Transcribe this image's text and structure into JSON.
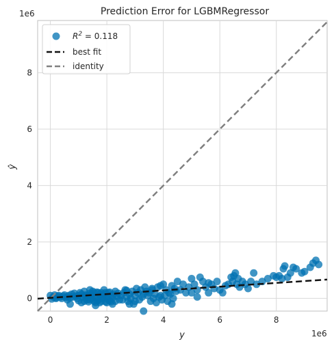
{
  "chart_data": {
    "type": "scatter",
    "title": "Prediction Error for LGBMRegressor",
    "xlabel": "y",
    "ylabel": "ŷ",
    "x_offset_label": "1e6",
    "y_offset_label": "1e6",
    "xlim": [
      -0.45,
      9.8
    ],
    "ylim": [
      -0.45,
      9.85
    ],
    "xticks": [
      0,
      2,
      4,
      6,
      8
    ],
    "yticks": [
      0,
      2,
      4,
      6,
      8
    ],
    "grid": true,
    "legend_placement": "top-left",
    "legend": {
      "r2_prefix": "R",
      "r2_sup": "2",
      "r2_value": " = 0.118",
      "best_fit": "best fit",
      "identity": "identity"
    },
    "colors": {
      "points": "#0072b2",
      "best_fit": "#111111",
      "identity": "#808080",
      "grid": "#d9d9d9"
    },
    "series": [
      {
        "name": "R² = 0.118",
        "points": [
          [
            0.0,
            0.1
          ],
          [
            0.1,
            0.05
          ],
          [
            0.15,
            0.12
          ],
          [
            0.2,
            0.02
          ],
          [
            0.25,
            0.08
          ],
          [
            0.3,
            0.1
          ],
          [
            0.05,
            -0.02
          ],
          [
            0.35,
            0.05
          ],
          [
            0.4,
            0.0
          ],
          [
            0.45,
            0.08
          ],
          [
            0.5,
            0.12
          ],
          [
            0.55,
            0.03
          ],
          [
            0.6,
            0.06
          ],
          [
            0.65,
            0.1
          ],
          [
            0.7,
            0.02
          ],
          [
            0.75,
            0.15
          ],
          [
            0.8,
            0.05
          ],
          [
            0.85,
            0.18
          ],
          [
            0.9,
            0.08
          ],
          [
            0.95,
            0.0
          ],
          [
            1.0,
            0.1
          ],
          [
            1.05,
            0.2
          ],
          [
            1.1,
            0.15
          ],
          [
            1.15,
            0.05
          ],
          [
            1.2,
            0.25
          ],
          [
            1.25,
            0.12
          ],
          [
            1.3,
            -0.05
          ],
          [
            1.35,
            0.08
          ],
          [
            1.4,
            0.18
          ],
          [
            1.45,
            0.0
          ],
          [
            1.5,
            0.1
          ],
          [
            1.55,
            -0.1
          ],
          [
            1.6,
            0.05
          ],
          [
            1.65,
            0.22
          ],
          [
            1.7,
            -0.05
          ],
          [
            1.75,
            0.12
          ],
          [
            1.8,
            0.2
          ],
          [
            1.85,
            0.0
          ],
          [
            1.9,
            0.15
          ],
          [
            1.95,
            -0.12
          ],
          [
            2.0,
            0.05
          ],
          [
            2.05,
            0.2
          ],
          [
            2.1,
            -0.08
          ],
          [
            2.15,
            0.1
          ],
          [
            2.2,
            0.02
          ],
          [
            2.25,
            0.15
          ],
          [
            2.3,
            -0.1
          ],
          [
            2.35,
            0.08
          ],
          [
            2.4,
            0.18
          ],
          [
            2.45,
            -0.05
          ],
          [
            1.2,
            -0.1
          ],
          [
            1.3,
            0.1
          ],
          [
            1.4,
            -0.05
          ],
          [
            1.5,
            0.25
          ],
          [
            1.6,
            -0.15
          ],
          [
            1.7,
            0.2
          ],
          [
            1.8,
            -0.1
          ],
          [
            1.9,
            0.05
          ],
          [
            2.0,
            -0.15
          ],
          [
            2.1,
            0.22
          ],
          [
            1.25,
            0.05
          ],
          [
            1.35,
            -0.12
          ],
          [
            1.45,
            0.15
          ],
          [
            1.55,
            0.2
          ],
          [
            1.65,
            -0.08
          ],
          [
            1.75,
            -0.15
          ],
          [
            1.85,
            0.12
          ],
          [
            1.95,
            0.2
          ],
          [
            2.05,
            -0.05
          ],
          [
            2.15,
            -0.12
          ],
          [
            2.5,
            0.1
          ],
          [
            2.6,
            0.2
          ],
          [
            2.7,
            0.05
          ],
          [
            2.8,
            0.15
          ],
          [
            2.9,
            0.25
          ],
          [
            3.0,
            0.1
          ],
          [
            3.1,
            0.2
          ],
          [
            3.2,
            0.3
          ],
          [
            3.3,
            0.15
          ],
          [
            3.4,
            0.25
          ],
          [
            2.55,
            -0.05
          ],
          [
            2.65,
            0.3
          ],
          [
            2.75,
            -0.1
          ],
          [
            2.85,
            0.0
          ],
          [
            2.95,
            -0.2
          ],
          [
            3.05,
            0.35
          ],
          [
            3.15,
            -0.05
          ],
          [
            3.25,
            0.05
          ],
          [
            3.35,
            0.4
          ],
          [
            3.45,
            0.1
          ],
          [
            3.5,
            0.2
          ],
          [
            3.6,
            0.3
          ],
          [
            3.7,
            0.15
          ],
          [
            3.8,
            0.4
          ],
          [
            3.9,
            0.1
          ],
          [
            4.0,
            0.5
          ],
          [
            4.1,
            0.3
          ],
          [
            4.2,
            0.2
          ],
          [
            4.3,
            0.45
          ],
          [
            4.4,
            0.35
          ],
          [
            3.55,
            -0.1
          ],
          [
            3.65,
            0.0
          ],
          [
            3.75,
            -0.15
          ],
          [
            3.85,
            0.05
          ],
          [
            3.95,
            -0.05
          ],
          [
            4.05,
            0.1
          ],
          [
            4.15,
            -0.1
          ],
          [
            4.25,
            0.15
          ],
          [
            4.35,
            0.0
          ],
          [
            4.45,
            0.25
          ],
          [
            4.5,
            0.6
          ],
          [
            4.6,
            0.3
          ],
          [
            4.7,
            0.5
          ],
          [
            4.8,
            0.2
          ],
          [
            4.9,
            0.4
          ],
          [
            5.0,
            0.7
          ],
          [
            5.1,
            0.5
          ],
          [
            5.2,
            0.3
          ],
          [
            5.3,
            0.75
          ],
          [
            5.4,
            0.6
          ],
          [
            5.5,
            0.4
          ],
          [
            5.6,
            0.2
          ],
          [
            5.7,
            0.5
          ],
          [
            5.8,
            0.35
          ],
          [
            5.9,
            0.6
          ],
          [
            6.0,
            0.3
          ],
          [
            6.1,
            0.2
          ],
          [
            6.2,
            0.45
          ],
          [
            6.3,
            0.5
          ],
          [
            6.4,
            0.75
          ],
          [
            6.45,
            0.6
          ],
          [
            6.5,
            0.8
          ],
          [
            6.55,
            0.9
          ],
          [
            6.6,
            0.5
          ],
          [
            6.65,
            0.7
          ],
          [
            6.7,
            0.4
          ],
          [
            6.8,
            0.6
          ],
          [
            6.9,
            0.5
          ],
          [
            7.0,
            0.35
          ],
          [
            7.1,
            0.6
          ],
          [
            7.2,
            0.9
          ],
          [
            7.3,
            0.5
          ],
          [
            7.5,
            0.6
          ],
          [
            7.7,
            0.7
          ],
          [
            7.9,
            0.8
          ],
          [
            8.0,
            0.75
          ],
          [
            8.1,
            0.8
          ],
          [
            8.2,
            0.7
          ],
          [
            8.25,
            1.05
          ],
          [
            8.3,
            1.15
          ],
          [
            8.4,
            0.75
          ],
          [
            8.5,
            0.9
          ],
          [
            8.6,
            1.1
          ],
          [
            8.7,
            1.05
          ],
          [
            8.9,
            0.9
          ],
          [
            9.0,
            0.95
          ],
          [
            9.2,
            1.1
          ],
          [
            9.3,
            1.25
          ],
          [
            9.4,
            1.35
          ],
          [
            9.5,
            1.2
          ],
          [
            0.7,
            -0.2
          ],
          [
            1.1,
            -0.15
          ],
          [
            1.6,
            -0.25
          ],
          [
            2.2,
            -0.2
          ],
          [
            2.8,
            -0.2
          ],
          [
            3.3,
            -0.45
          ],
          [
            4.3,
            -0.2
          ],
          [
            5.0,
            0.2
          ],
          [
            5.2,
            0.05
          ],
          [
            5.6,
            0.55
          ],
          [
            0.2,
            0.0
          ],
          [
            0.6,
            -0.05
          ],
          [
            1.0,
            -0.08
          ],
          [
            1.4,
            0.3
          ],
          [
            1.9,
            0.3
          ],
          [
            2.3,
            0.25
          ],
          [
            2.7,
            0.28
          ],
          [
            3.0,
            -0.1
          ],
          [
            3.6,
            0.35
          ],
          [
            3.9,
            0.45
          ]
        ]
      }
    ],
    "best_fit_line": {
      "slope": 0.066,
      "intercept": 0.02
    },
    "identity_line": {
      "slope": 1,
      "intercept": 0
    }
  }
}
